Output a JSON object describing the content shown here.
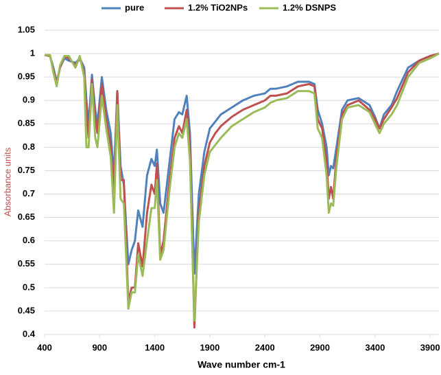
{
  "chart_data": {
    "type": "line",
    "x_label": "Wave number  cm-1",
    "y_label": "Absorbance units",
    "x": [
      400,
      450,
      480,
      510,
      540,
      580,
      620,
      680,
      720,
      760,
      780,
      800,
      830,
      860,
      880,
      920,
      960,
      1000,
      1030,
      1060,
      1090,
      1120,
      1160,
      1190,
      1220,
      1250,
      1290,
      1330,
      1370,
      1400,
      1420,
      1450,
      1480,
      1530,
      1580,
      1620,
      1650,
      1690,
      1720,
      1760,
      1800,
      1850,
      1900,
      1950,
      2000,
      2100,
      2200,
      2300,
      2400,
      2450,
      2500,
      2600,
      2700,
      2800,
      2850,
      2880,
      2920,
      2960,
      2980,
      3000,
      3020,
      3050,
      3100,
      3150,
      3250,
      3350,
      3400,
      3440,
      3480,
      3550,
      3600,
      3700,
      3800,
      3900,
      3980
    ],
    "series": [
      {
        "name": "pure",
        "color": "#4f81bd",
        "values": [
          0.997,
          0.995,
          0.97,
          0.94,
          0.97,
          0.99,
          0.985,
          0.98,
          0.99,
          0.97,
          0.9,
          0.85,
          0.955,
          0.88,
          0.85,
          0.95,
          0.88,
          0.83,
          0.74,
          0.92,
          0.76,
          0.72,
          0.55,
          0.58,
          0.6,
          0.665,
          0.63,
          0.74,
          0.775,
          0.76,
          0.795,
          0.68,
          0.66,
          0.76,
          0.86,
          0.875,
          0.87,
          0.91,
          0.83,
          0.53,
          0.7,
          0.79,
          0.84,
          0.855,
          0.87,
          0.885,
          0.9,
          0.91,
          0.915,
          0.925,
          0.925,
          0.93,
          0.94,
          0.94,
          0.935,
          0.88,
          0.85,
          0.8,
          0.74,
          0.76,
          0.755,
          0.8,
          0.88,
          0.9,
          0.905,
          0.89,
          0.865,
          0.84,
          0.87,
          0.89,
          0.92,
          0.97,
          0.985,
          0.995,
          1.0
        ]
      },
      {
        "name": "1.2% TiO2NPs",
        "color": "#c0504d",
        "values": [
          0.997,
          0.995,
          0.965,
          0.935,
          0.97,
          0.995,
          0.99,
          0.975,
          0.99,
          0.96,
          0.88,
          0.82,
          0.945,
          0.86,
          0.83,
          0.935,
          0.86,
          0.8,
          0.7,
          0.92,
          0.73,
          0.73,
          0.47,
          0.5,
          0.5,
          0.595,
          0.545,
          0.66,
          0.72,
          0.7,
          0.765,
          0.57,
          0.6,
          0.72,
          0.82,
          0.845,
          0.83,
          0.88,
          0.8,
          0.415,
          0.66,
          0.76,
          0.81,
          0.83,
          0.845,
          0.865,
          0.88,
          0.89,
          0.9,
          0.91,
          0.91,
          0.915,
          0.93,
          0.935,
          0.93,
          0.86,
          0.84,
          0.77,
          0.69,
          0.715,
          0.69,
          0.78,
          0.87,
          0.89,
          0.9,
          0.88,
          0.86,
          0.84,
          0.86,
          0.885,
          0.905,
          0.96,
          0.985,
          0.995,
          1.0
        ]
      },
      {
        "name": "1.2% DSNPS",
        "color": "#9bbb59",
        "values": [
          0.997,
          0.997,
          0.96,
          0.93,
          0.975,
          0.995,
          0.995,
          0.97,
          0.995,
          0.95,
          0.8,
          0.8,
          0.935,
          0.82,
          0.8,
          0.91,
          0.84,
          0.78,
          0.66,
          0.89,
          0.69,
          0.68,
          0.455,
          0.49,
          0.49,
          0.57,
          0.525,
          0.6,
          0.67,
          0.67,
          0.73,
          0.56,
          0.58,
          0.7,
          0.8,
          0.83,
          0.82,
          0.86,
          0.77,
          0.43,
          0.64,
          0.74,
          0.79,
          0.805,
          0.82,
          0.845,
          0.86,
          0.875,
          0.885,
          0.895,
          0.9,
          0.905,
          0.92,
          0.92,
          0.915,
          0.84,
          0.82,
          0.74,
          0.66,
          0.68,
          0.675,
          0.76,
          0.86,
          0.885,
          0.89,
          0.875,
          0.85,
          0.83,
          0.85,
          0.87,
          0.89,
          0.95,
          0.98,
          0.99,
          1.0
        ]
      }
    ],
    "xlim": [
      400,
      3980
    ],
    "xticks": [
      400,
      900,
      1400,
      1900,
      2400,
      2900,
      3400,
      3900
    ],
    "ylim": [
      0.4,
      1.05
    ],
    "yticks": [
      0.4,
      0.45,
      0.5,
      0.55,
      0.6,
      0.65,
      0.7,
      0.75,
      0.8,
      0.85,
      0.9,
      0.95,
      1,
      1.05
    ],
    "grid": true,
    "legend": "top"
  }
}
